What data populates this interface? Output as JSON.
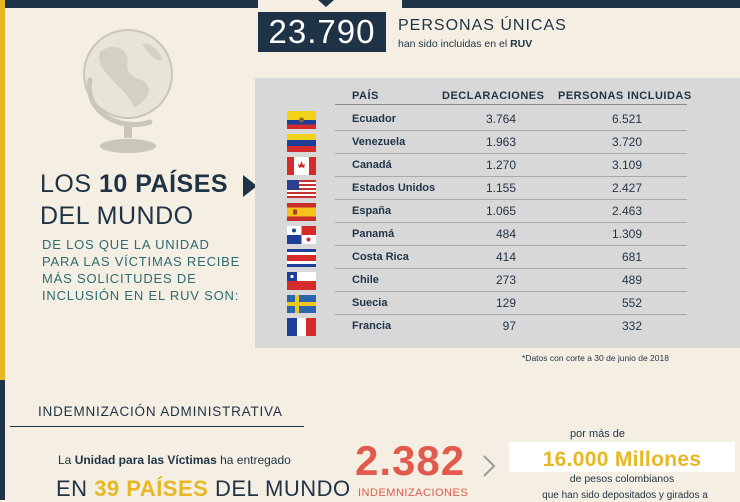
{
  "summary": {
    "count": "23.790",
    "title": "PERSONAS ÚNICAS",
    "subtitle_prefix": "han sido incluidas en el ",
    "subtitle_bold": "RUV"
  },
  "heading": {
    "line1_prefix": "LOS ",
    "line1_bold": "10 PAÍSES",
    "line2": "DEL MUNDO",
    "description_lines": [
      "DE LOS QUE LA UNIDAD",
      "PARA LAS VÍCTIMAS RECIBE",
      "MÁS SOLICITUDES DE",
      "INCLUSIÓN EN EL RUV SON:"
    ]
  },
  "table": {
    "headers": {
      "country": "PAÍS",
      "declarations": "DECLARACIONES",
      "people": "PERSONAS INCLUIDAS"
    },
    "rows": [
      {
        "country": "Ecuador",
        "declarations": "3.764",
        "people": "6.521",
        "flag": "ecuador-flag-icon"
      },
      {
        "country": "Venezuela",
        "declarations": "1.963",
        "people": "3.720",
        "flag": "venezuela-flag-icon"
      },
      {
        "country": "Canadá",
        "declarations": "1.270",
        "people": "3.109",
        "flag": "canada-flag-icon"
      },
      {
        "country": "Estados Unidos",
        "declarations": "1.155",
        "people": "2.427",
        "flag": "usa-flag-icon"
      },
      {
        "country": "España",
        "declarations": "1.065",
        "people": "2.463",
        "flag": "spain-flag-icon"
      },
      {
        "country": "Panamá",
        "declarations": "484",
        "people": "1.309",
        "flag": "panama-flag-icon"
      },
      {
        "country": "Costa Rica",
        "declarations": "414",
        "people": "681",
        "flag": "costa-rica-flag-icon"
      },
      {
        "country": "Chile",
        "declarations": "273",
        "people": "489",
        "flag": "chile-flag-icon"
      },
      {
        "country": "Suecia",
        "declarations": "129",
        "people": "552",
        "flag": "sweden-flag-icon"
      },
      {
        "country": "Francia",
        "declarations": "97",
        "people": "332",
        "flag": "france-flag-icon"
      }
    ],
    "footnote": "*Datos con corte a 30 de junio de 2018"
  },
  "indemnizacion": {
    "section_title": "INDEMNIZACIÓN ADMINISTRATIVA",
    "entregado_prefix": "La ",
    "entregado_bold": "Unidad para las Víctimas",
    "entregado_suffix": " ha entregado",
    "countries_prefix": "EN ",
    "countries_highlight": "39 PAÍSES",
    "countries_suffix": " DEL MUNDO",
    "big_number": "2.382",
    "big_label": "INDEMNIZACIONES",
    "por_mas": "por más de",
    "millones": "16.000 Millones",
    "pesos": "de pesos colombianos",
    "depositados": "que han sido depositados y girados a"
  },
  "colors": {
    "navy": "#1f3346",
    "gold": "#e7b824",
    "coral": "#e25a4e",
    "teal": "#2e6b73",
    "panel": "#d8d8d8",
    "background": "#f4efe2"
  }
}
